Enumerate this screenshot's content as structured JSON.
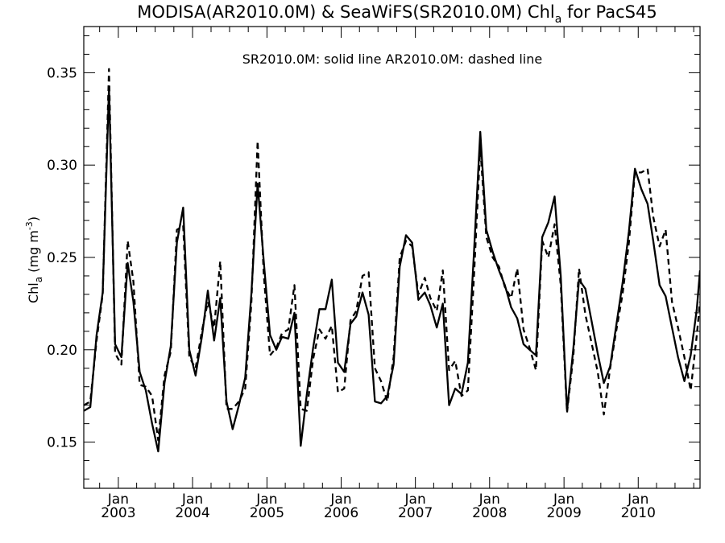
{
  "chart_data": {
    "type": "line",
    "title": {
      "main": "MODISA(AR2010.0M) & SeaWiFS(SR2010.0M)  Chl",
      "sub": "a",
      "tail": " for PacS45"
    },
    "annotation": "SR2010.0M: solid line   AR2010.0M: dashed line",
    "ylabel": {
      "base": "Chl",
      "sub": "a",
      "unit_open": " (mg m",
      "sup": "-3",
      "unit_close": ")"
    },
    "xlabel": "",
    "x_range": [
      "2002-07-15",
      "2010-11-01"
    ],
    "ylim": [
      0.125,
      0.375
    ],
    "yticks": [
      "0.15",
      "0.20",
      "0.25",
      "0.30",
      "0.35"
    ],
    "xticks": [
      {
        "date": "2003-01-01",
        "month": "Jan",
        "year": "2003"
      },
      {
        "date": "2004-01-01",
        "month": "Jan",
        "year": "2004"
      },
      {
        "date": "2005-01-01",
        "month": "Jan",
        "year": "2005"
      },
      {
        "date": "2006-01-01",
        "month": "Jan",
        "year": "2006"
      },
      {
        "date": "2007-01-01",
        "month": "Jan",
        "year": "2007"
      },
      {
        "date": "2008-01-01",
        "month": "Jan",
        "year": "2008"
      },
      {
        "date": "2009-01-01",
        "month": "Jan",
        "year": "2009"
      },
      {
        "date": "2010-01-01",
        "month": "Jan",
        "year": "2010"
      }
    ],
    "series": [
      {
        "name": "SR2010.0M",
        "style": "solid",
        "color": "#000000",
        "x": [
          "2002-07-16",
          "2002-08-16",
          "2002-09-16",
          "2002-10-16",
          "2002-11-16",
          "2002-12-16",
          "2003-01-16",
          "2003-02-16",
          "2003-03-16",
          "2003-04-16",
          "2003-05-16",
          "2003-06-16",
          "2003-07-16",
          "2003-08-16",
          "2003-09-16",
          "2003-10-16",
          "2003-11-16",
          "2003-12-16",
          "2004-01-16",
          "2004-02-16",
          "2004-03-16",
          "2004-04-16",
          "2004-05-16",
          "2004-06-16",
          "2004-07-16",
          "2004-08-16",
          "2004-09-16",
          "2004-10-16",
          "2004-11-16",
          "2004-12-16",
          "2005-01-16",
          "2005-02-16",
          "2005-03-16",
          "2005-04-16",
          "2005-05-16",
          "2005-06-16",
          "2005-07-16",
          "2005-08-16",
          "2005-09-16",
          "2005-10-16",
          "2005-11-16",
          "2005-12-16",
          "2006-01-16",
          "2006-02-16",
          "2006-03-16",
          "2006-04-16",
          "2006-05-16",
          "2006-06-16",
          "2006-07-16",
          "2006-08-16",
          "2006-09-16",
          "2006-10-16",
          "2006-11-16",
          "2006-12-16",
          "2007-01-16",
          "2007-02-16",
          "2007-03-16",
          "2007-04-16",
          "2007-05-16",
          "2007-06-16",
          "2007-07-16",
          "2007-08-16",
          "2007-09-16",
          "2007-10-16",
          "2007-11-16",
          "2007-12-16",
          "2008-01-16",
          "2008-02-16",
          "2008-03-16",
          "2008-04-16",
          "2008-05-16",
          "2008-06-16",
          "2008-07-16",
          "2008-08-16",
          "2008-09-16",
          "2008-10-16",
          "2008-11-16",
          "2008-12-16",
          "2009-01-16",
          "2009-02-16",
          "2009-03-16",
          "2009-04-16",
          "2009-05-16",
          "2009-06-16",
          "2009-07-16",
          "2009-08-16",
          "2009-09-16",
          "2009-10-16",
          "2009-11-16",
          "2009-12-16",
          "2010-01-16",
          "2010-02-16",
          "2010-03-16",
          "2010-04-16",
          "2010-05-16",
          "2010-06-16",
          "2010-07-16",
          "2010-08-16",
          "2010-09-16",
          "2010-10-16",
          "2010-11-01"
        ],
        "y": [
          0.167,
          0.169,
          0.208,
          0.231,
          0.342,
          0.203,
          0.196,
          0.247,
          0.226,
          0.188,
          0.178,
          0.16,
          0.145,
          0.182,
          0.202,
          0.258,
          0.277,
          0.2,
          0.186,
          0.207,
          0.232,
          0.205,
          0.228,
          0.172,
          0.157,
          0.17,
          0.185,
          0.23,
          0.29,
          0.248,
          0.208,
          0.2,
          0.207,
          0.206,
          0.22,
          0.148,
          0.176,
          0.201,
          0.222,
          0.222,
          0.238,
          0.193,
          0.188,
          0.214,
          0.218,
          0.231,
          0.219,
          0.172,
          0.171,
          0.175,
          0.192,
          0.245,
          0.262,
          0.258,
          0.227,
          0.231,
          0.224,
          0.212,
          0.225,
          0.17,
          0.179,
          0.176,
          0.193,
          0.252,
          0.318,
          0.265,
          0.253,
          0.243,
          0.235,
          0.223,
          0.217,
          0.203,
          0.2,
          0.197,
          0.261,
          0.269,
          0.283,
          0.24,
          0.167,
          0.201,
          0.238,
          0.233,
          0.216,
          0.198,
          0.182,
          0.191,
          0.214,
          0.236,
          0.264,
          0.298,
          0.287,
          0.279,
          0.259,
          0.235,
          0.229,
          0.212,
          0.196,
          0.183,
          0.197,
          0.222,
          0.243
        ]
      },
      {
        "name": "AR2010.0M",
        "style": "dashed",
        "color": "#000000",
        "x": [
          "2002-07-16",
          "2002-08-16",
          "2002-09-16",
          "2002-10-16",
          "2002-11-16",
          "2002-12-16",
          "2003-01-16",
          "2003-02-16",
          "2003-03-16",
          "2003-04-16",
          "2003-05-16",
          "2003-06-16",
          "2003-07-16",
          "2003-08-16",
          "2003-09-16",
          "2003-10-16",
          "2003-11-16",
          "2003-12-16",
          "2004-01-16",
          "2004-02-16",
          "2004-03-16",
          "2004-04-16",
          "2004-05-16",
          "2004-06-16",
          "2004-07-16",
          "2004-08-16",
          "2004-09-16",
          "2004-10-16",
          "2004-11-16",
          "2004-12-16",
          "2005-01-16",
          "2005-02-16",
          "2005-03-16",
          "2005-04-16",
          "2005-05-16",
          "2005-06-16",
          "2005-07-16",
          "2005-08-16",
          "2005-09-16",
          "2005-10-16",
          "2005-11-16",
          "2005-12-16",
          "2006-01-16",
          "2006-02-16",
          "2006-03-16",
          "2006-04-16",
          "2006-05-16",
          "2006-06-16",
          "2006-07-16",
          "2006-08-16",
          "2006-09-16",
          "2006-10-16",
          "2006-11-16",
          "2006-12-16",
          "2007-01-16",
          "2007-02-16",
          "2007-03-16",
          "2007-04-16",
          "2007-05-16",
          "2007-06-16",
          "2007-07-16",
          "2007-08-16",
          "2007-09-16",
          "2007-10-16",
          "2007-11-16",
          "2007-12-16",
          "2008-01-16",
          "2008-02-16",
          "2008-03-16",
          "2008-04-16",
          "2008-05-16",
          "2008-06-16",
          "2008-07-16",
          "2008-08-16",
          "2008-09-16",
          "2008-10-16",
          "2008-11-16",
          "2008-12-16",
          "2009-01-16",
          "2009-02-16",
          "2009-03-16",
          "2009-04-16",
          "2009-05-16",
          "2009-06-16",
          "2009-07-16",
          "2009-08-16",
          "2009-09-16",
          "2009-10-16",
          "2009-11-16",
          "2009-12-16",
          "2010-01-16",
          "2010-02-16",
          "2010-03-16",
          "2010-04-16",
          "2010-05-16",
          "2010-06-16",
          "2010-07-16",
          "2010-08-16",
          "2010-09-16",
          "2010-10-16",
          "2010-11-01"
        ],
        "y": [
          0.17,
          0.172,
          0.205,
          0.23,
          0.352,
          0.198,
          0.192,
          0.259,
          0.237,
          0.181,
          0.18,
          0.175,
          0.151,
          0.186,
          0.199,
          0.265,
          0.267,
          0.196,
          0.19,
          0.21,
          0.226,
          0.212,
          0.248,
          0.168,
          0.168,
          0.172,
          0.179,
          0.225,
          0.313,
          0.241,
          0.197,
          0.201,
          0.209,
          0.211,
          0.235,
          0.168,
          0.167,
          0.195,
          0.211,
          0.206,
          0.213,
          0.177,
          0.179,
          0.216,
          0.221,
          0.24,
          0.242,
          0.19,
          0.183,
          0.172,
          0.196,
          0.25,
          0.259,
          0.256,
          0.23,
          0.239,
          0.228,
          0.221,
          0.243,
          0.189,
          0.194,
          0.175,
          0.178,
          0.239,
          0.31,
          0.261,
          0.25,
          0.245,
          0.234,
          0.228,
          0.244,
          0.211,
          0.201,
          0.189,
          0.259,
          0.25,
          0.268,
          0.235,
          0.166,
          0.197,
          0.244,
          0.219,
          0.204,
          0.188,
          0.165,
          0.19,
          0.211,
          0.23,
          0.258,
          0.296,
          0.296,
          0.298,
          0.272,
          0.256,
          0.265,
          0.226,
          0.212,
          0.196,
          0.178,
          0.208,
          0.226
        ]
      }
    ]
  }
}
